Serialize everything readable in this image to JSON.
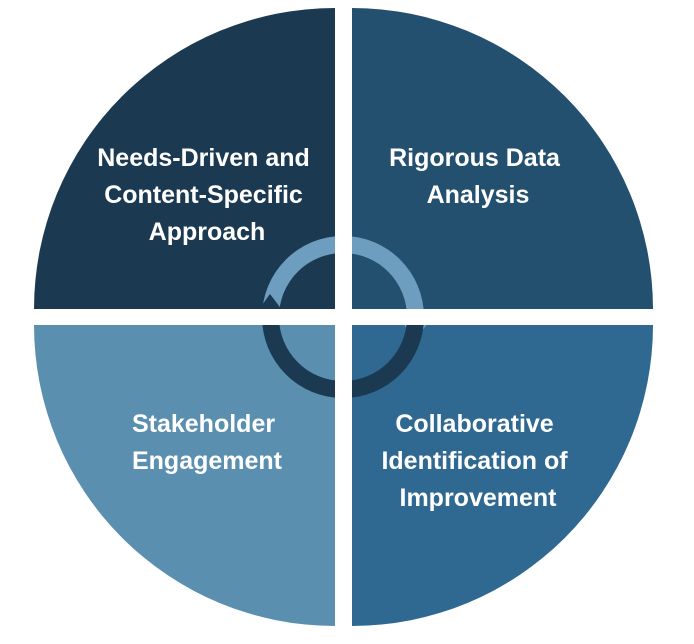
{
  "quadrants": [
    {
      "id": "top-left",
      "label_lines": [
        "Needs-Driven and",
        "Content-Specific",
        "Approach"
      ],
      "color": "#1b3a52"
    },
    {
      "id": "top-right",
      "label_lines": [
        "Rigorous Data",
        "Analysis"
      ],
      "color": "#24506f"
    },
    {
      "id": "bottom-left",
      "label_lines": [
        "Stakeholder",
        "Engagement"
      ],
      "color": "#5b8fb0"
    },
    {
      "id": "bottom-right",
      "label_lines": [
        "Collaborative",
        "Identification of",
        "Improvement"
      ],
      "color": "#2f6890"
    }
  ],
  "cycle_icon": {
    "name": "cycle-arrows-icon",
    "light_color": "#6d9ec0",
    "dark_color": "#1b3a52"
  }
}
